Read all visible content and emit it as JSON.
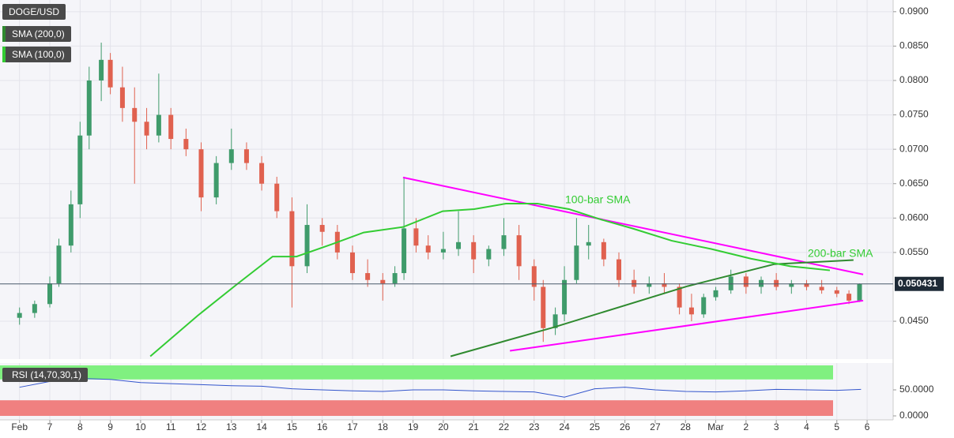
{
  "chart_data": [
    {
      "type": "candlestick",
      "title": "DOGE/USD",
      "xlim": [
        5.355,
        34.86
      ],
      "ylim": [
        0.0395,
        0.0917
      ],
      "xticks": [
        {
          "value": 6,
          "label": "Feb"
        },
        7,
        8,
        9,
        10,
        11,
        12,
        13,
        14,
        15,
        16,
        17,
        18,
        19,
        20,
        21,
        22,
        23,
        24,
        25,
        26,
        27,
        28,
        {
          "value": 29,
          "label": "Mar"
        },
        {
          "value": 30,
          "label": "2"
        },
        {
          "value": 31,
          "label": "3"
        },
        {
          "value": 32,
          "label": "4"
        },
        {
          "value": 33,
          "label": "5"
        },
        {
          "value": 34,
          "label": "6"
        }
      ],
      "yticks": [
        {
          "value": 0.045,
          "label": "0.0450"
        },
        {
          "value": 0.055,
          "label": "0.0550"
        },
        {
          "value": 0.06,
          "label": "0.0600"
        },
        {
          "value": 0.065,
          "label": "0.0650"
        },
        {
          "value": 0.07,
          "label": "0.0700"
        },
        {
          "value": 0.075,
          "label": "0.0750"
        },
        {
          "value": 0.08,
          "label": "0.0800"
        },
        {
          "value": 0.085,
          "label": "0.0850"
        },
        {
          "value": 0.09,
          "label": "0.0900"
        }
      ],
      "grid": true,
      "up_color": "#3f9b6b",
      "down_color": "#e0614f",
      "candles": {
        "x": [
          6.0,
          6.5,
          7.0,
          7.3,
          7.7,
          8.0,
          8.3,
          8.7,
          9.0,
          9.4,
          9.8,
          10.2,
          10.6,
          11.0,
          11.5,
          12.0,
          12.5,
          13.0,
          13.5,
          14.0,
          14.5,
          15.0,
          15.5,
          16.0,
          16.5,
          17.0,
          17.5,
          18.0,
          18.4,
          18.7,
          19.1,
          19.5,
          20.0,
          20.5,
          21.0,
          21.5,
          22.0,
          22.5,
          23.0,
          23.3,
          23.7,
          24.0,
          24.4,
          24.8,
          25.3,
          25.8,
          26.3,
          26.8,
          27.3,
          27.8,
          28.2,
          28.6,
          29.0,
          29.5,
          30.0,
          30.5,
          31.0,
          31.5,
          32.0,
          32.5,
          33.0,
          33.4,
          33.75
        ],
        "open": [
          0.0455,
          0.0462,
          0.0475,
          0.0505,
          0.056,
          0.062,
          0.072,
          0.08,
          0.083,
          0.079,
          0.076,
          0.074,
          0.072,
          0.075,
          0.0715,
          0.07,
          0.063,
          0.068,
          0.07,
          0.068,
          0.065,
          0.061,
          0.053,
          0.059,
          0.058,
          0.055,
          0.052,
          0.051,
          0.0505,
          0.052,
          0.0585,
          0.056,
          0.055,
          0.0555,
          0.0565,
          0.054,
          0.0555,
          0.0575,
          0.053,
          0.05,
          0.044,
          0.046,
          0.051,
          0.056,
          0.0565,
          0.054,
          0.051,
          0.05,
          0.0505,
          0.05,
          0.047,
          0.046,
          0.0485,
          0.0495,
          0.0515,
          0.05,
          0.051,
          0.05,
          0.0505,
          0.05,
          0.0495,
          0.049,
          0.048
        ],
        "high": [
          0.047,
          0.048,
          0.0515,
          0.057,
          0.064,
          0.074,
          0.082,
          0.0855,
          0.084,
          0.082,
          0.079,
          0.076,
          0.081,
          0.076,
          0.073,
          0.071,
          0.069,
          0.073,
          0.071,
          0.069,
          0.066,
          0.063,
          0.062,
          0.06,
          0.059,
          0.056,
          0.054,
          0.052,
          0.053,
          0.066,
          0.06,
          0.0575,
          0.058,
          0.061,
          0.0575,
          0.056,
          0.06,
          0.059,
          0.054,
          0.051,
          0.047,
          0.053,
          0.06,
          0.059,
          0.057,
          0.055,
          0.0525,
          0.0515,
          0.052,
          0.0505,
          0.049,
          0.049,
          0.05,
          0.0525,
          0.052,
          0.0515,
          0.052,
          0.051,
          0.051,
          0.051,
          0.05,
          0.0495,
          0.0505
        ],
        "low": [
          0.0445,
          0.0455,
          0.047,
          0.05,
          0.055,
          0.06,
          0.07,
          0.077,
          0.078,
          0.074,
          0.065,
          0.07,
          0.071,
          0.07,
          0.069,
          0.061,
          0.062,
          0.067,
          0.067,
          0.064,
          0.06,
          0.047,
          0.052,
          0.056,
          0.054,
          0.051,
          0.05,
          0.048,
          0.05,
          0.051,
          0.055,
          0.054,
          0.054,
          0.0545,
          0.052,
          0.053,
          0.0545,
          0.051,
          0.048,
          0.042,
          0.043,
          0.045,
          0.0505,
          0.054,
          0.053,
          0.05,
          0.049,
          0.049,
          0.049,
          0.046,
          0.045,
          0.0455,
          0.048,
          0.049,
          0.049,
          0.049,
          0.0495,
          0.049,
          0.0495,
          0.049,
          0.0485,
          0.0475,
          0.0478
        ],
        "close": [
          0.0462,
          0.0475,
          0.0505,
          0.056,
          0.062,
          0.072,
          0.08,
          0.083,
          0.079,
          0.076,
          0.074,
          0.072,
          0.075,
          0.0715,
          0.07,
          0.063,
          0.068,
          0.07,
          0.068,
          0.065,
          0.061,
          0.053,
          0.059,
          0.058,
          0.055,
          0.052,
          0.051,
          0.0505,
          0.052,
          0.0585,
          0.056,
          0.055,
          0.0555,
          0.0565,
          0.054,
          0.0555,
          0.0575,
          0.053,
          0.05,
          0.044,
          0.046,
          0.051,
          0.056,
          0.0565,
          0.054,
          0.051,
          0.05,
          0.0505,
          0.05,
          0.047,
          0.046,
          0.0485,
          0.0495,
          0.0515,
          0.05,
          0.051,
          0.05,
          0.0505,
          0.05,
          0.0495,
          0.049,
          0.048,
          0.0504
        ]
      },
      "series": [
        {
          "name": "SMA (200,0)",
          "color": "#2f8a2f",
          "x": [
            20.24,
            23.63,
            28.07,
            30.94,
            33.55
          ],
          "values": [
            0.0399,
            0.0441,
            0.0501,
            0.0533,
            0.0539
          ]
        },
        {
          "name": "SMA (100,0)",
          "color": "#33cc33",
          "x": [
            10.32,
            11.88,
            13.19,
            14.36,
            15.15,
            16.32,
            17.37,
            18.67,
            19.98,
            21.02,
            22.07,
            23.11,
            24.15,
            25.2,
            26.24,
            27.55,
            28.85,
            30.16,
            31.46,
            32.77
          ],
          "values": [
            0.0399,
            0.0458,
            0.0504,
            0.0544,
            0.0544,
            0.0562,
            0.0579,
            0.0587,
            0.061,
            0.0613,
            0.0621,
            0.0621,
            0.0613,
            0.0598,
            0.0585,
            0.0567,
            0.0555,
            0.0541,
            0.053,
            0.0524
          ]
        }
      ],
      "trendlines": [
        {
          "color": "#ff00ff",
          "x": [
            18.67,
            33.87
          ],
          "values": [
            0.0659,
            0.0518
          ]
        },
        {
          "color": "#ff00ff",
          "x": [
            22.2,
            33.87
          ],
          "values": [
            0.0407,
            0.048
          ]
        }
      ],
      "annotations": [
        "100-bar SMA",
        "200-bar SMA"
      ],
      "last_price": 0.050431
    },
    {
      "type": "line",
      "title": "RSI (14,70,30,1)",
      "xlim": [
        5.355,
        34.86
      ],
      "ylim": [
        -7.6,
        101.5
      ],
      "yticks": [
        {
          "value": 0,
          "label": "0.0000"
        },
        {
          "value": 50,
          "label": "50.0000"
        }
      ],
      "levels": [
        30,
        70
      ],
      "upper_color": "#80f080",
      "lower_color": "#f08080",
      "series": [
        {
          "color": "#3355cc",
          "x": [
            6,
            7,
            8,
            9,
            10,
            11,
            12,
            13,
            14,
            15,
            16,
            17,
            18,
            19,
            20,
            21,
            22,
            23,
            24,
            25,
            26,
            27,
            28,
            29,
            30,
            31,
            32,
            33,
            33.8
          ],
          "values": [
            55,
            66,
            72,
            70,
            64,
            62,
            60,
            58,
            57,
            52,
            50,
            48,
            47,
            50,
            50,
            48,
            47,
            46,
            36,
            52,
            55,
            50,
            47,
            46,
            48,
            51,
            50,
            49,
            51
          ]
        }
      ]
    }
  ]
}
